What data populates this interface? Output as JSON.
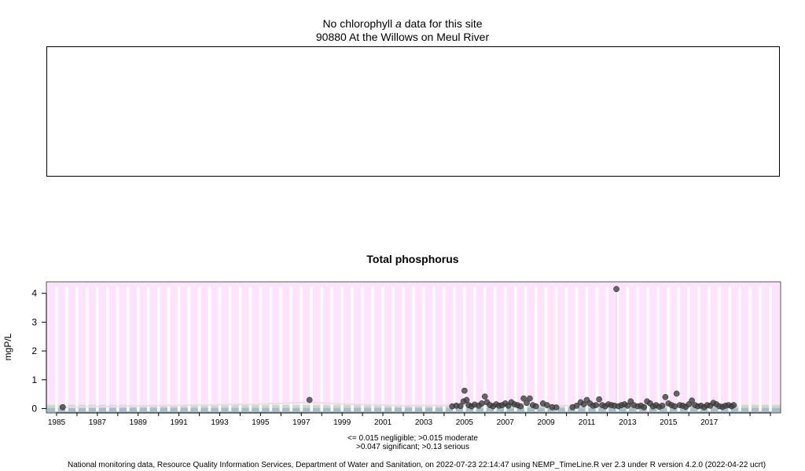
{
  "header": {
    "line1_pre": "No chlorophyll ",
    "line1_italic": "a",
    "line1_post": " data for this site",
    "site": "90880 At the Willows on Meul River"
  },
  "chart_data": {
    "type": "scatter",
    "title": "Total phosphorus",
    "ylabel": "mgP/L",
    "xlabel": "",
    "ylim": [
      0,
      4.2
    ],
    "xlim": [
      1984.5,
      2020.5
    ],
    "yticks": [
      0,
      1,
      2,
      3,
      4
    ],
    "xticks": [
      1985,
      1987,
      1989,
      1991,
      1993,
      1995,
      1997,
      1999,
      2001,
      2003,
      2005,
      2007,
      2009,
      2011,
      2013,
      2015,
      2017
    ],
    "background_color": "#ffe3fc",
    "point_color": "#404040",
    "grid": true,
    "thresholds": [
      {
        "label": "negligible",
        "value": 0.015
      },
      {
        "label": "moderate",
        "value": 0.015
      },
      {
        "label": "significant",
        "value": 0.047
      },
      {
        "label": "serious",
        "value": 0.13
      }
    ],
    "legend_text": [
      "<= 0.015 negligible; >0.015 moderate",
      ">0.047 significant; >0.13 serious"
    ],
    "points": [
      [
        1985.3,
        0.05
      ],
      [
        1997.4,
        0.3
      ],
      [
        2004.4,
        0.08
      ],
      [
        2004.6,
        0.1
      ],
      [
        2004.8,
        0.09
      ],
      [
        2004.95,
        0.25
      ],
      [
        2005.0,
        0.62
      ],
      [
        2005.1,
        0.3
      ],
      [
        2005.2,
        0.12
      ],
      [
        2005.35,
        0.08
      ],
      [
        2005.5,
        0.14
      ],
      [
        2005.7,
        0.1
      ],
      [
        2005.85,
        0.18
      ],
      [
        2006.0,
        0.42
      ],
      [
        2006.1,
        0.22
      ],
      [
        2006.25,
        0.12
      ],
      [
        2006.4,
        0.08
      ],
      [
        2006.55,
        0.15
      ],
      [
        2006.7,
        0.1
      ],
      [
        2006.85,
        0.12
      ],
      [
        2007.0,
        0.18
      ],
      [
        2007.15,
        0.1
      ],
      [
        2007.3,
        0.22
      ],
      [
        2007.45,
        0.15
      ],
      [
        2007.6,
        0.12
      ],
      [
        2007.75,
        0.08
      ],
      [
        2007.9,
        0.35
      ],
      [
        2008.05,
        0.2
      ],
      [
        2008.2,
        0.35
      ],
      [
        2008.35,
        0.12
      ],
      [
        2008.5,
        0.08
      ],
      [
        2008.85,
        0.18
      ],
      [
        2009.05,
        0.12
      ],
      [
        2009.3,
        0.05
      ],
      [
        2009.5,
        0.04
      ],
      [
        2010.3,
        0.05
      ],
      [
        2010.5,
        0.1
      ],
      [
        2010.7,
        0.22
      ],
      [
        2010.85,
        0.15
      ],
      [
        2011.0,
        0.3
      ],
      [
        2011.15,
        0.18
      ],
      [
        2011.3,
        0.1
      ],
      [
        2011.45,
        0.12
      ],
      [
        2011.6,
        0.32
      ],
      [
        2011.75,
        0.12
      ],
      [
        2011.9,
        0.08
      ],
      [
        2012.05,
        0.15
      ],
      [
        2012.2,
        0.12
      ],
      [
        2012.35,
        0.1
      ],
      [
        2012.45,
        4.15
      ],
      [
        2012.55,
        0.08
      ],
      [
        2012.7,
        0.12
      ],
      [
        2012.85,
        0.15
      ],
      [
        2013.0,
        0.1
      ],
      [
        2013.15,
        0.25
      ],
      [
        2013.3,
        0.12
      ],
      [
        2013.5,
        0.08
      ],
      [
        2013.65,
        0.1
      ],
      [
        2013.8,
        0.05
      ],
      [
        2013.95,
        0.25
      ],
      [
        2014.1,
        0.18
      ],
      [
        2014.25,
        0.08
      ],
      [
        2014.4,
        0.12
      ],
      [
        2014.55,
        0.06
      ],
      [
        2014.7,
        0.1
      ],
      [
        2014.85,
        0.4
      ],
      [
        2015.0,
        0.18
      ],
      [
        2015.15,
        0.12
      ],
      [
        2015.3,
        0.08
      ],
      [
        2015.4,
        0.52
      ],
      [
        2015.55,
        0.12
      ],
      [
        2015.7,
        0.1
      ],
      [
        2015.85,
        0.06
      ],
      [
        2016.0,
        0.15
      ],
      [
        2016.15,
        0.28
      ],
      [
        2016.3,
        0.12
      ],
      [
        2016.45,
        0.08
      ],
      [
        2016.6,
        0.1
      ],
      [
        2016.75,
        0.05
      ],
      [
        2016.9,
        0.12
      ],
      [
        2017.05,
        0.1
      ],
      [
        2017.2,
        0.2
      ],
      [
        2017.35,
        0.15
      ],
      [
        2017.5,
        0.08
      ],
      [
        2017.65,
        0.06
      ],
      [
        2017.8,
        0.1
      ],
      [
        2017.95,
        0.12
      ],
      [
        2018.1,
        0.08
      ],
      [
        2018.2,
        0.12
      ]
    ],
    "smooth": [
      [
        1985.3,
        0.05
      ],
      [
        1990,
        0.1
      ],
      [
        1995,
        0.16
      ],
      [
        1997.4,
        0.22
      ],
      [
        1999,
        0.16
      ],
      [
        2002,
        0.1
      ],
      [
        2004.5,
        0.12
      ],
      [
        2006,
        0.15
      ],
      [
        2008,
        0.14
      ],
      [
        2009.5,
        0.09
      ],
      [
        2010.5,
        0.1
      ],
      [
        2012,
        0.15
      ],
      [
        2014,
        0.13
      ],
      [
        2016,
        0.12
      ],
      [
        2018.2,
        0.11
      ]
    ]
  },
  "footer": "National monitoring data, Resource Quality Information Services, Department of Water and Sanitation, on 2022-07-23 22:14:47 using NEMP_TimeLine.R ver 2.3 under R version 4.2.0 (2022-04-22 ucrt)"
}
